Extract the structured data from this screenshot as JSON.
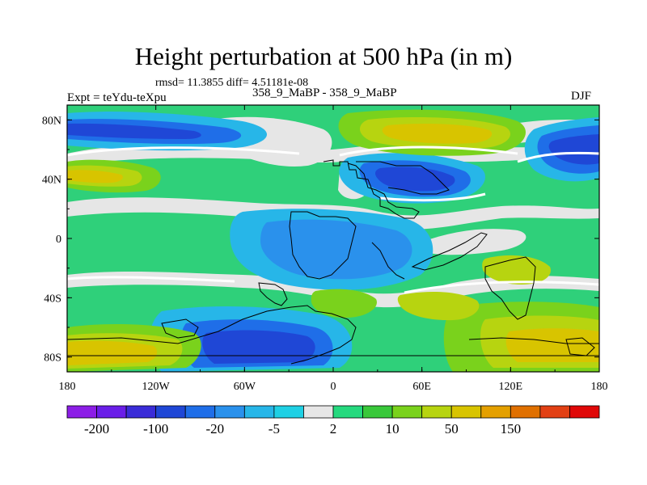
{
  "title": "Height perturbation at 500 hPa (in m)",
  "stats": "rmsd= 11.3855 diff= 4.51181e-08",
  "left_label": "Expt = teYdu-teXpu",
  "center_label": "358_9_MaBP - 358_9_MaBP",
  "right_label": "DJF",
  "map": {
    "lon_ticks": [
      {
        "value": -180,
        "label": "180"
      },
      {
        "value": -120,
        "label": "120W"
      },
      {
        "value": -60,
        "label": "60W"
      },
      {
        "value": 0,
        "label": "0"
      },
      {
        "value": 60,
        "label": "60E"
      },
      {
        "value": 120,
        "label": "120E"
      },
      {
        "value": 180,
        "label": "180"
      }
    ],
    "lat_ticks": [
      {
        "value": 80,
        "label": "80N"
      },
      {
        "value": 40,
        "label": "40N"
      },
      {
        "value": 0,
        "label": "0"
      },
      {
        "value": -40,
        "label": "40S"
      },
      {
        "value": -80,
        "label": "80S"
      }
    ],
    "lon_range": [
      -180,
      180
    ],
    "lat_range": [
      -90,
      90
    ]
  },
  "colorbar": {
    "colors": [
      "#8c1ee6",
      "#6a1ee8",
      "#3a2cd8",
      "#1f47d6",
      "#1f6ee8",
      "#2a91ec",
      "#27b6e8",
      "#1fd0e4",
      "#e6e6e6",
      "#25d97e",
      "#39c83a",
      "#7ad21c",
      "#b7d410",
      "#d8c400",
      "#e4a000",
      "#e07000",
      "#e24014",
      "#e00808"
    ],
    "labels": [
      {
        "boundary": 1,
        "text": "-200"
      },
      {
        "boundary": 3,
        "text": "-100"
      },
      {
        "boundary": 5,
        "text": "-20"
      },
      {
        "boundary": 7,
        "text": "-5"
      },
      {
        "boundary": 9,
        "text": "2"
      },
      {
        "boundary": 11,
        "text": "10"
      },
      {
        "boundary": 13,
        "text": "50"
      },
      {
        "boundary": 15,
        "text": "150"
      }
    ]
  }
}
